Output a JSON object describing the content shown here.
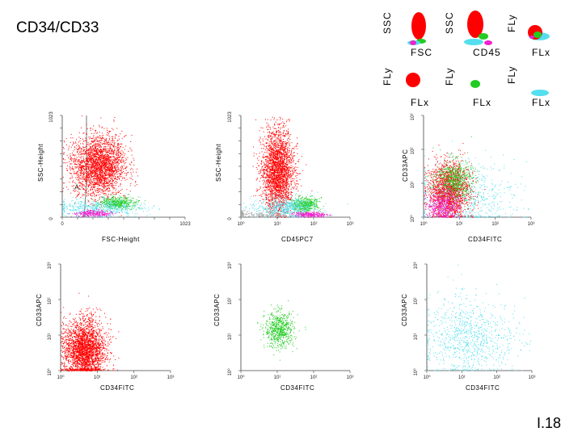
{
  "page": {
    "title": "CD34/CD33",
    "footer": "I.18"
  },
  "colors": {
    "red": "#ff0000",
    "green": "#22cc22",
    "cyan": "#55dfee",
    "magenta": "#ee22cc",
    "gray": "#aaaaaa"
  },
  "legend_key": [
    {
      "ylabel": "SSC",
      "xlabel": "FSC"
    },
    {
      "ylabel": "SSC",
      "xlabel": "CD45"
    },
    {
      "ylabel": "FLy",
      "xlabel": "FLx"
    },
    {
      "ylabel": "FLy",
      "xlabel": "FLx"
    },
    {
      "ylabel": "FLy",
      "xlabel": "FLx"
    },
    {
      "ylabel": "FLy",
      "xlabel": "FLx"
    }
  ],
  "chart_data": [
    {
      "type": "scatter",
      "scale": "linear",
      "xlabel": "FSC-Height",
      "ylabel": "SSC-Height",
      "xticks": [
        "0",
        "1023"
      ],
      "yticks": [
        "0",
        "1023"
      ],
      "gate_label": "A",
      "populations": [
        {
          "color": "red",
          "cx": 300,
          "cy": 520,
          "sx": 110,
          "sy": 150,
          "n": 2600
        },
        {
          "color": "green",
          "cx": 460,
          "cy": 150,
          "sx": 75,
          "sy": 30,
          "n": 450
        },
        {
          "color": "cyan",
          "cx": 300,
          "cy": 95,
          "sx": 180,
          "sy": 45,
          "n": 550
        },
        {
          "color": "magenta",
          "cx": 260,
          "cy": 40,
          "sx": 80,
          "sy": 15,
          "n": 280
        }
      ]
    },
    {
      "type": "scatter",
      "scale": "log-x",
      "xlabel": "CD45PC7",
      "ylabel": "SSC-Height",
      "xticks": [
        "10⁰",
        "10¹",
        "10²",
        "10³"
      ],
      "yticks": [
        "0",
        "1023"
      ],
      "populations": [
        {
          "color": "red",
          "cx": 1.0,
          "cy": 460,
          "sx": 0.22,
          "sy": 210,
          "n": 2600
        },
        {
          "color": "green",
          "cx": 1.75,
          "cy": 130,
          "sx": 0.18,
          "sy": 35,
          "n": 450
        },
        {
          "color": "cyan",
          "cx": 1.2,
          "cy": 95,
          "sx": 0.45,
          "sy": 55,
          "n": 650
        },
        {
          "color": "magenta",
          "cx": 1.9,
          "cy": 28,
          "sx": 0.22,
          "sy": 14,
          "n": 280
        },
        {
          "color": "gray",
          "cx": 0.4,
          "cy": 30,
          "sx": 0.45,
          "sy": 18,
          "n": 180
        }
      ]
    },
    {
      "type": "scatter",
      "scale": "log",
      "xlabel": "CD34FITC",
      "ylabel": "CD33APC",
      "xticks": [
        "10⁰",
        "10¹",
        "10²",
        "10³"
      ],
      "yticks": [
        "10⁰",
        "10¹",
        "10²",
        "10³"
      ],
      "populations": [
        {
          "color": "cyan",
          "cx": 1.1,
          "cy": 0.6,
          "sx": 0.75,
          "sy": 0.5,
          "n": 700
        },
        {
          "color": "red",
          "cx": 0.7,
          "cy": 0.8,
          "sx": 0.28,
          "sy": 0.42,
          "n": 1800
        },
        {
          "color": "green",
          "cx": 0.85,
          "cy": 1.1,
          "sx": 0.25,
          "sy": 0.3,
          "n": 600
        },
        {
          "color": "magenta",
          "cx": 0.55,
          "cy": 0.35,
          "sx": 0.22,
          "sy": 0.25,
          "n": 500
        }
      ]
    },
    {
      "type": "scatter",
      "scale": "log",
      "xlabel": "CD34FITC",
      "ylabel": "CD33APC",
      "xticks": [
        "10⁰",
        "10¹",
        "10²",
        "10³"
      ],
      "yticks": [
        "10⁰",
        "10¹",
        "10²",
        "10³"
      ],
      "populations": [
        {
          "color": "red",
          "cx": 0.65,
          "cy": 0.6,
          "sx": 0.28,
          "sy": 0.42,
          "n": 3000
        }
      ]
    },
    {
      "type": "scatter",
      "scale": "log",
      "xlabel": "CD34FITC",
      "ylabel": "CD33APC",
      "xticks": [
        "10⁰",
        "10¹",
        "10²",
        "10³"
      ],
      "yticks": [
        "10⁰",
        "10¹",
        "10²",
        "10³"
      ],
      "populations": [
        {
          "color": "green",
          "cx": 1.05,
          "cy": 1.15,
          "sx": 0.2,
          "sy": 0.25,
          "n": 650
        }
      ]
    },
    {
      "type": "scatter",
      "scale": "log",
      "xlabel": "CD34FITC",
      "ylabel": "CD33APC",
      "xticks": [
        "10⁰",
        "10¹",
        "10²",
        "10³"
      ],
      "yticks": [
        "10⁰",
        "10¹",
        "10²",
        "10³"
      ],
      "populations": [
        {
          "color": "cyan",
          "cx": 1.25,
          "cy": 0.9,
          "sx": 0.65,
          "sy": 0.55,
          "n": 900
        }
      ]
    }
  ]
}
